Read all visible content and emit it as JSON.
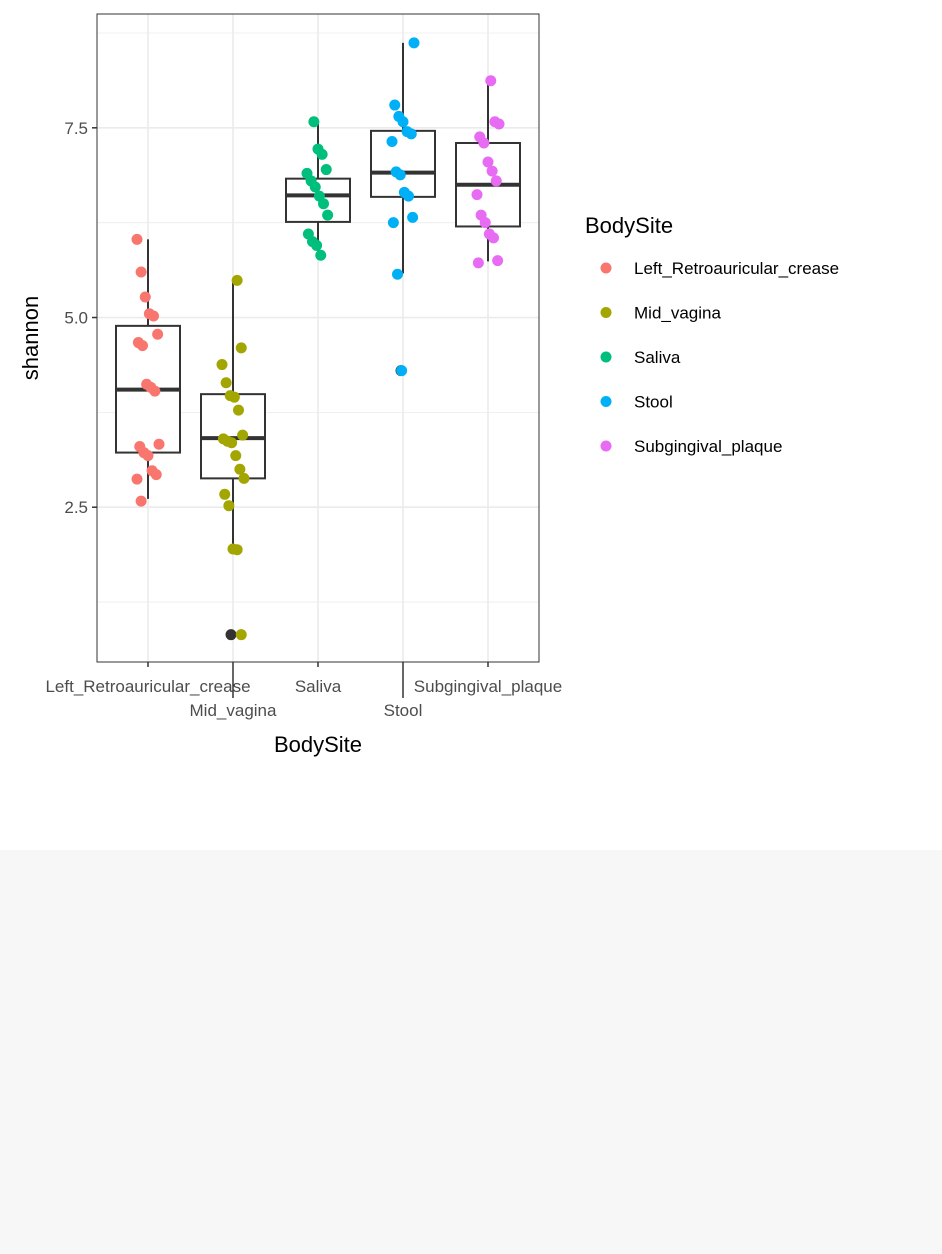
{
  "chart_data": {
    "type": "boxplot",
    "title": "",
    "xlabel": "BodySite",
    "ylabel": "shannon",
    "ylim": [
      0.46,
      9.0
    ],
    "yticks": [
      2.5,
      5.0,
      7.5
    ],
    "ytick_labels": [
      "2.5",
      "5.0",
      "7.5"
    ],
    "categories": [
      "Left_Retroauricular_crease",
      "Mid_vagina",
      "Saliva",
      "Stool",
      "Subgingival_plaque"
    ],
    "colors": [
      "#F8766D",
      "#A3A500",
      "#00BF7D",
      "#00B0F6",
      "#E76BF3"
    ],
    "grid": true,
    "legend": {
      "title": "BodySite",
      "position": "right",
      "entries": [
        "Left_Retroauricular_crease",
        "Mid_vagina",
        "Saliva",
        "Stool",
        "Subgingival_plaque"
      ]
    },
    "boxes": [
      {
        "q1": 3.22,
        "median": 4.05,
        "q3": 4.89,
        "whisker_low": 2.61,
        "whisker_high": 6.03,
        "outliers": []
      },
      {
        "q1": 2.88,
        "median": 3.41,
        "q3": 3.99,
        "whisker_low": 1.95,
        "whisker_high": 5.49,
        "outliers": [
          0.82
        ]
      },
      {
        "q1": 6.26,
        "median": 6.61,
        "q3": 6.83,
        "whisker_low": 5.83,
        "whisker_high": 7.58,
        "outliers": []
      },
      {
        "q1": 6.59,
        "median": 6.91,
        "q3": 7.46,
        "whisker_low": 5.58,
        "whisker_high": 8.62,
        "outliers": [
          4.3
        ]
      },
      {
        "q1": 6.2,
        "median": 6.75,
        "q3": 7.3,
        "whisker_low": 5.74,
        "whisker_high": 8.11,
        "outliers": []
      }
    ],
    "points": [
      [
        6.03,
        5.6,
        5.27,
        5.05,
        5.02,
        4.78,
        4.67,
        4.63,
        4.12,
        4.08,
        4.03,
        3.33,
        3.3,
        3.22,
        3.18,
        2.98,
        2.93,
        2.87,
        2.58
      ],
      [
        5.49,
        4.6,
        4.38,
        4.14,
        3.97,
        3.95,
        3.78,
        3.45,
        3.4,
        3.37,
        3.35,
        3.18,
        3.0,
        2.88,
        2.67,
        2.52,
        1.95,
        1.94,
        0.82
      ],
      [
        7.58,
        7.22,
        7.15,
        6.95,
        6.9,
        6.8,
        6.72,
        6.6,
        6.5,
        6.35,
        6.1,
        6.0,
        5.95,
        5.82
      ],
      [
        8.62,
        7.8,
        7.65,
        7.58,
        7.45,
        7.42,
        7.32,
        6.92,
        6.88,
        6.65,
        6.6,
        6.32,
        6.25,
        5.57,
        4.3
      ],
      [
        8.12,
        7.58,
        7.55,
        7.38,
        7.3,
        7.05,
        6.93,
        6.8,
        6.62,
        6.35,
        6.25,
        6.1,
        6.05,
        5.75,
        5.72
      ]
    ]
  }
}
